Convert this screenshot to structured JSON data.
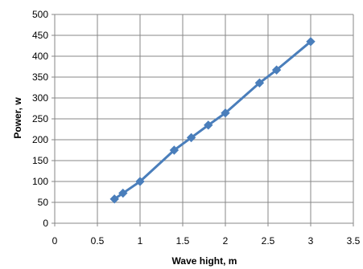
{
  "chart_data": {
    "type": "line",
    "xlabel": "Wave hight, m",
    "ylabel": "Power, w",
    "xlim": [
      0,
      3.5
    ],
    "ylim": [
      0,
      500
    ],
    "x_ticks": [
      "0",
      "0.5",
      "1",
      "1.5",
      "2",
      "2.5",
      "3",
      "3.5"
    ],
    "y_ticks": [
      "0",
      "50",
      "100",
      "150",
      "200",
      "250",
      "300",
      "350",
      "400",
      "450",
      "500"
    ],
    "grid": true,
    "legend": "none",
    "series": [
      {
        "color": "#4a7ebb",
        "marker": "diamond",
        "points": [
          {
            "x": 0.7,
            "y": 58
          },
          {
            "x": 0.8,
            "y": 72
          },
          {
            "x": 1.0,
            "y": 100
          },
          {
            "x": 1.4,
            "y": 175
          },
          {
            "x": 1.6,
            "y": 205
          },
          {
            "x": 1.8,
            "y": 235
          },
          {
            "x": 2.0,
            "y": 264
          },
          {
            "x": 2.4,
            "y": 336
          },
          {
            "x": 2.6,
            "y": 367
          },
          {
            "x": 3.0,
            "y": 435
          }
        ]
      }
    ],
    "colors": {
      "grid": "#878787",
      "axis": "#878787"
    }
  }
}
